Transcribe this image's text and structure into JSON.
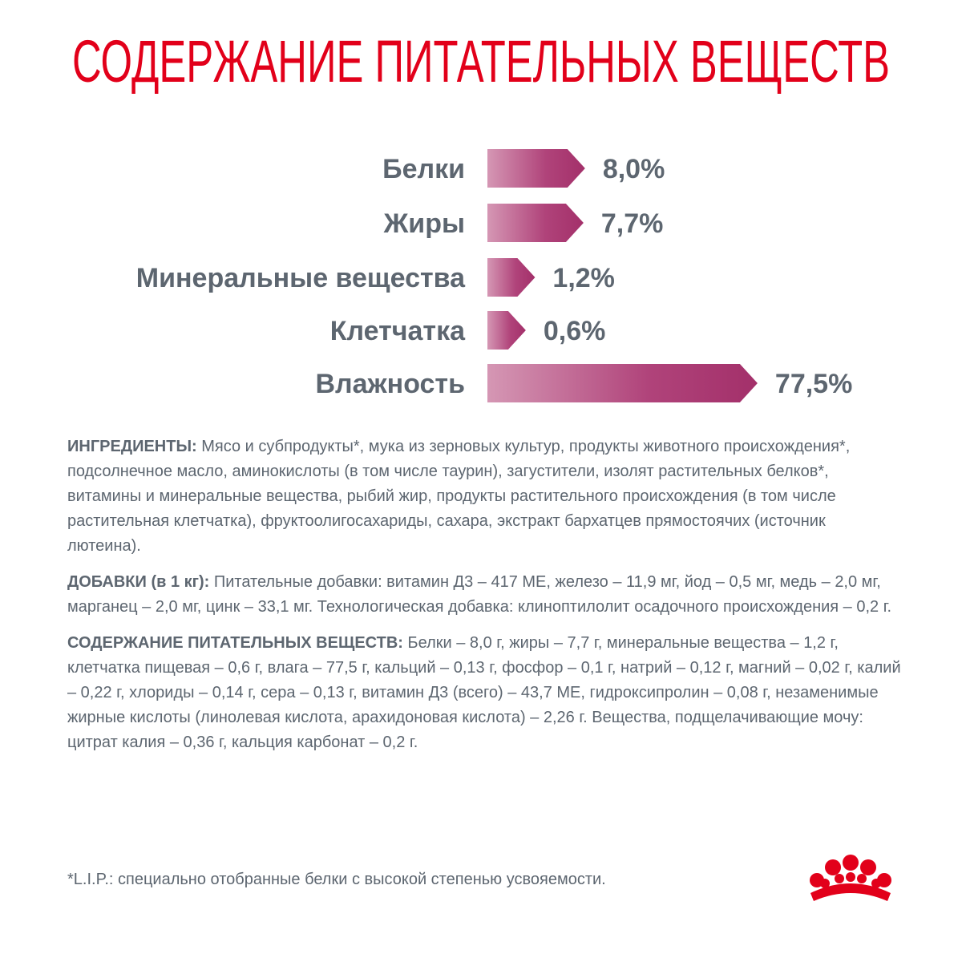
{
  "chart_data": {
    "type": "hbar",
    "title": "СОДЕРЖАНИЕ ПИТАТЕЛЬНЫХ ВЕЩЕСТВ",
    "categories": [
      "Белки",
      "Жиры",
      "Минеральные вещества",
      "Клетчатка",
      "Влажность"
    ],
    "values": [
      8.0,
      7.7,
      1.2,
      0.6,
      77.5
    ],
    "value_labels": [
      "8,0%",
      "7,7%",
      "1,2%",
      "0,6%",
      "77,5%"
    ],
    "color": "#a8336a"
  },
  "sections": [
    {
      "label": "ИНГРЕДИЕНТЫ:",
      "text": "Мясо и субпродукты*, мука из зерновых культур, продукты животного происхождения*, подсолнечное масло, аминокислоты (в том числе таурин), загустители, изолят растительных белков*, витамины и минеральные вещества, рыбий жир, продукты растительного происхождения (в том числе растительная клетчатка), фруктоолигосахариды, сахара, экстракт бархатцев прямостоячих (источник лютеина)."
    },
    {
      "label": "ДОБАВКИ (в 1 кг):",
      "text": "Питательные добавки: витамин Д3 – 417 МЕ, железо – 11,9 мг, йод – 0,5 мг, медь – 2,0 мг, марганец – 2,0 мг, цинк – 33,1 мг. Технологическая добавка: клиноптилолит осадочного происхождения – 0,2 г."
    },
    {
      "label": "СОДЕРЖАНИЕ ПИТАТЕЛЬНЫХ ВЕЩЕСТВ:",
      "text": "Белки – 8,0 г, жиры – 7,7 г, минеральные вещества – 1,2 г, клетчатка пищевая – 0,6 г, влага – 77,5 г, кальций – 0,13 г, фосфор – 0,1 г, натрий – 0,12 г, магний – 0,02 г, калий – 0,22 г, хлориды – 0,14 г, сера – 0,13 г, витамин Д3 (всего) – 43,7 МЕ, гидроксипролин – 0,08 г, незаменимые жирные кислоты (линолевая кислота, арахидоновая кислота) – 2,26 г. Вещества, подщелачивающие мочу: цитрат калия – 0,36 г, кальция карбонат – 0,2 г."
    }
  ],
  "footnote": "*L.I.P.: специально отобранные белки с высокой степенью усвояемости."
}
